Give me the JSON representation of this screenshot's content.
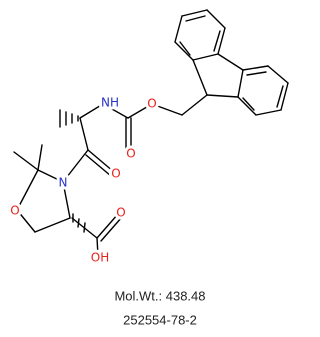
{
  "structure": {
    "atoms": [
      "NH",
      "O",
      "O",
      "O",
      "N",
      "O",
      "O",
      "OH"
    ]
  },
  "info": {
    "mol_wt": "Mol.Wt.: 438.48",
    "cas": "252554-78-2"
  }
}
